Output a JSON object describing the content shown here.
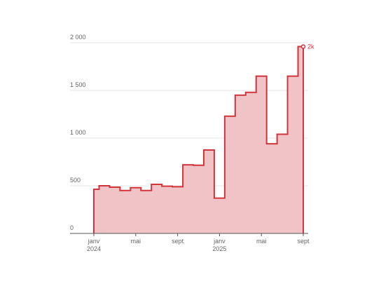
{
  "chart_data": {
    "type": "step-area",
    "categories": [
      "janv\n2024",
      null,
      null,
      null,
      "mai",
      null,
      null,
      null,
      "sept",
      null,
      null,
      null,
      "janv\n2025",
      null,
      null,
      null,
      "mai",
      null,
      null,
      null,
      "sept"
    ],
    "values": [
      463,
      500,
      485,
      450,
      480,
      450,
      515,
      495,
      490,
      720,
      715,
      875,
      370,
      1230,
      1450,
      1480,
      1650,
      940,
      1040,
      1650,
      1960
    ],
    "value_labels": [
      null,
      null,
      null,
      null,
      null,
      null,
      null,
      null,
      null,
      null,
      null,
      null,
      null,
      null,
      null,
      null,
      null,
      null,
      null,
      null,
      "2k"
    ],
    "color": "#d1343b",
    "fill": "#f0c3c6",
    "ylim": [
      0,
      2000
    ],
    "yticks": [
      {
        "value": 0,
        "label": "0"
      },
      {
        "value": 500,
        "label": "500"
      },
      {
        "value": 1000,
        "label": "1 000"
      },
      {
        "value": 1500,
        "label": "1 500"
      },
      {
        "value": 2000,
        "label": "2 000"
      }
    ],
    "grid": true
  }
}
